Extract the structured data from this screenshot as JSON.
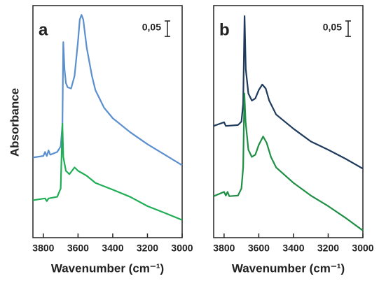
{
  "ylabel": "Absorbance",
  "chart_data": [
    {
      "type": "line",
      "label": "a",
      "xlabel": "Wavenumber (cm⁻¹)",
      "xlim": [
        3860,
        3000
      ],
      "ylim": [
        0,
        0.75
      ],
      "xticks": [
        3800,
        3600,
        3400,
        3200,
        3000
      ],
      "scale_bar": {
        "value": 0.05,
        "label": "0,05"
      },
      "series": [
        {
          "color": "#5b8fd0",
          "x": [
            3860,
            3800,
            3790,
            3780,
            3770,
            3760,
            3720,
            3700,
            3690,
            3685,
            3678,
            3670,
            3660,
            3640,
            3620,
            3600,
            3590,
            3580,
            3570,
            3550,
            3520,
            3500,
            3450,
            3400,
            3300,
            3200,
            3100,
            3000
          ],
          "values": [
            0.259,
            0.264,
            0.277,
            0.264,
            0.282,
            0.268,
            0.277,
            0.295,
            0.364,
            0.632,
            0.545,
            0.5,
            0.486,
            0.482,
            0.523,
            0.636,
            0.705,
            0.72,
            0.705,
            0.614,
            0.523,
            0.477,
            0.42,
            0.386,
            0.341,
            0.302,
            0.268,
            0.234
          ]
        },
        {
          "color": "#1fae55",
          "x": [
            3860,
            3790,
            3780,
            3770,
            3720,
            3700,
            3690,
            3685,
            3670,
            3650,
            3620,
            3600,
            3550,
            3500,
            3400,
            3300,
            3200,
            3100,
            3000
          ],
          "values": [
            0.121,
            0.127,
            0.118,
            0.127,
            0.132,
            0.159,
            0.368,
            0.261,
            0.216,
            0.205,
            0.227,
            0.216,
            0.2,
            0.177,
            0.155,
            0.132,
            0.102,
            0.08,
            0.057
          ]
        }
      ]
    },
    {
      "type": "line",
      "label": "b",
      "xlabel": "Wavenumber (cm⁻¹)",
      "xlim": [
        3860,
        3000
      ],
      "ylim": [
        0,
        0.75
      ],
      "xticks": [
        3800,
        3600,
        3400,
        3200,
        3000
      ],
      "scale_bar": {
        "value": 0.05,
        "label": "0,05"
      },
      "series": [
        {
          "color": "#1e3a5c",
          "x": [
            3860,
            3800,
            3790,
            3720,
            3700,
            3690,
            3682,
            3675,
            3660,
            3640,
            3620,
            3600,
            3580,
            3560,
            3540,
            3500,
            3400,
            3300,
            3200,
            3100,
            3000
          ],
          "values": [
            0.361,
            0.373,
            0.361,
            0.364,
            0.375,
            0.432,
            0.716,
            0.545,
            0.466,
            0.443,
            0.45,
            0.477,
            0.495,
            0.482,
            0.443,
            0.398,
            0.352,
            0.311,
            0.284,
            0.255,
            0.223
          ]
        },
        {
          "color": "#1f8f45",
          "x": [
            3860,
            3800,
            3790,
            3780,
            3770,
            3720,
            3700,
            3690,
            3683,
            3676,
            3660,
            3640,
            3620,
            3600,
            3575,
            3555,
            3530,
            3500,
            3400,
            3300,
            3200,
            3100,
            3000
          ],
          "values": [
            0.134,
            0.148,
            0.136,
            0.148,
            0.134,
            0.136,
            0.159,
            0.227,
            0.466,
            0.375,
            0.284,
            0.261,
            0.268,
            0.3,
            0.327,
            0.307,
            0.261,
            0.227,
            0.177,
            0.136,
            0.102,
            0.064,
            0.023
          ]
        }
      ]
    }
  ]
}
